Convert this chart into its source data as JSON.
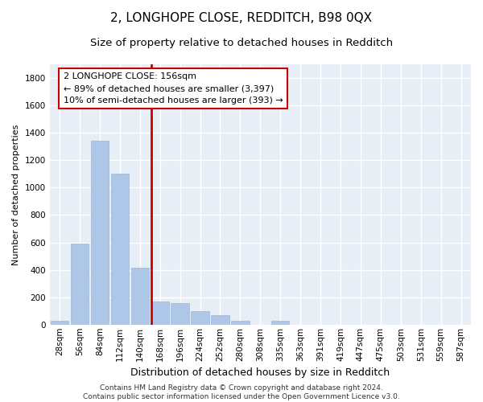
{
  "title": "2, LONGHOPE CLOSE, REDDITCH, B98 0QX",
  "subtitle": "Size of property relative to detached houses in Redditch",
  "xlabel": "Distribution of detached houses by size in Redditch",
  "ylabel": "Number of detached properties",
  "categories": [
    "28sqm",
    "56sqm",
    "84sqm",
    "112sqm",
    "140sqm",
    "168sqm",
    "196sqm",
    "224sqm",
    "252sqm",
    "280sqm",
    "308sqm",
    "335sqm",
    "363sqm",
    "391sqm",
    "419sqm",
    "447sqm",
    "475sqm",
    "503sqm",
    "531sqm",
    "559sqm",
    "587sqm"
  ],
  "values": [
    30,
    590,
    1340,
    1100,
    415,
    170,
    155,
    100,
    70,
    30,
    0,
    30,
    0,
    0,
    0,
    0,
    0,
    0,
    0,
    0,
    0
  ],
  "bar_color": "#aec6e8",
  "bar_edge_color": "#9ab8d8",
  "vline_color": "#cc0000",
  "annotation_line1": "2 LONGHOPE CLOSE: 156sqm",
  "annotation_line2": "← 89% of detached houses are smaller (3,397)",
  "annotation_line3": "10% of semi-detached houses are larger (393) →",
  "annotation_box_color": "#cc0000",
  "ylim": [
    0,
    1900
  ],
  "yticks": [
    0,
    200,
    400,
    600,
    800,
    1000,
    1200,
    1400,
    1600,
    1800
  ],
  "background_color": "#e8eef5",
  "grid_color": "#ffffff",
  "footer": "Contains HM Land Registry data © Crown copyright and database right 2024.\nContains public sector information licensed under the Open Government Licence v3.0.",
  "title_fontsize": 11,
  "subtitle_fontsize": 9.5,
  "xlabel_fontsize": 9,
  "ylabel_fontsize": 8,
  "annotation_fontsize": 8,
  "footer_fontsize": 6.5,
  "tick_fontsize": 7.5
}
